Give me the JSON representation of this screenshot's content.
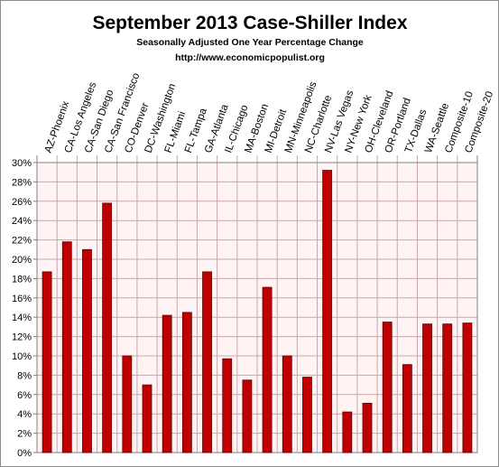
{
  "chart_data": {
    "type": "bar",
    "title": "September 2013 Case-Shiller Index",
    "subtitle": "Seasonally Adjusted One Year Percentage Change",
    "source": "http://www.economicpopulist.org",
    "xlabel": "",
    "ylabel": "",
    "ylim": [
      0,
      30
    ],
    "ytick_step": 2,
    "ytick_format": "percent",
    "grid": true,
    "legend": "none",
    "categories": [
      "AZ-Phoenix",
      "CA-Los Angeles",
      "CA-San Diego",
      "CA-San Francisco",
      "CO-Denver",
      "DC-Washington",
      "FL-Miami",
      "FL-Tampa",
      "GA-Atlanta",
      "IL-Chicago",
      "MA-Boston",
      "MI-Detroit",
      "MN-Minneapolis",
      "NC-Charlotte",
      "NV-Las Vegas",
      "NY-New York",
      "OH-Cleveland",
      "OR-Portland",
      "TX-Dallas",
      "WA-Seattle",
      "Composite-10",
      "Composite-20"
    ],
    "values": [
      18.7,
      21.8,
      21.0,
      25.8,
      10.0,
      7.0,
      14.2,
      14.5,
      18.7,
      9.7,
      7.5,
      17.1,
      10.0,
      7.8,
      29.2,
      4.2,
      5.1,
      13.5,
      9.1,
      13.3,
      13.3,
      13.4
    ],
    "colors": {
      "bar_fill": "#c00000",
      "bar_stroke": "#5a0000",
      "plot_background": "#fff3f3",
      "grid_line": "#c8a8a8",
      "axis_line": "#808080"
    }
  }
}
